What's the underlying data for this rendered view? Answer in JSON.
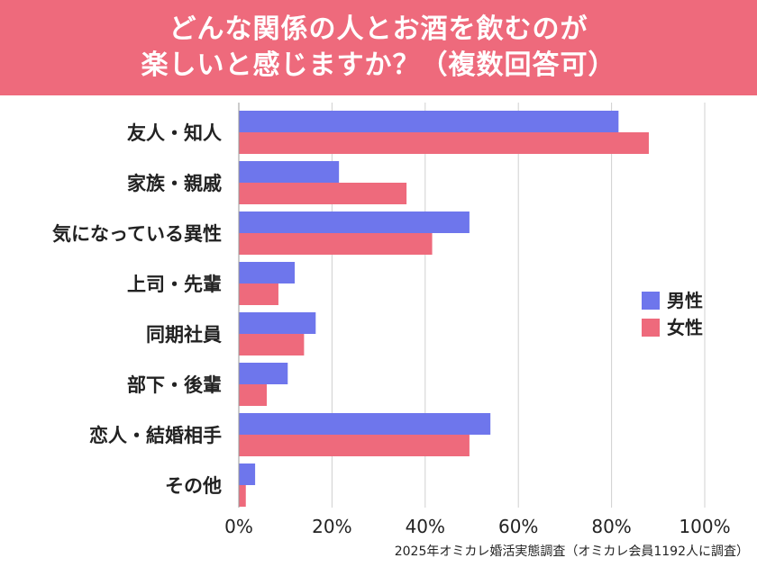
{
  "chart_data": {
    "type": "bar",
    "orientation": "horizontal",
    "title_lines": [
      "どんな関係の人とお酒を飲むのが",
      "楽しいと感じますか？（複数回答可）"
    ],
    "categories": [
      "友人・知人",
      "家族・親戚",
      "気になっている異性",
      "上司・先輩",
      "同期社員",
      "部下・後輩",
      "恋人・結婚相手",
      "その他"
    ],
    "series": [
      {
        "name": "男性",
        "color": "#6e76ec",
        "values": [
          81.5,
          21.5,
          49.5,
          12.0,
          16.5,
          10.5,
          54.0,
          3.5
        ]
      },
      {
        "name": "女性",
        "color": "#ee6a7c",
        "values": [
          88.0,
          36.0,
          41.5,
          8.5,
          14.0,
          6.0,
          49.5,
          1.5
        ]
      }
    ],
    "xlim": [
      0,
      100
    ],
    "xticks": [
      0,
      20,
      40,
      60,
      80,
      100
    ],
    "xtick_labels": [
      "0%",
      "20%",
      "40%",
      "60%",
      "80%",
      "100%"
    ],
    "grid": true,
    "legend": "right",
    "source": "2025年オミカレ婚活実態調査（オミカレ会員1192人に調査）"
  }
}
